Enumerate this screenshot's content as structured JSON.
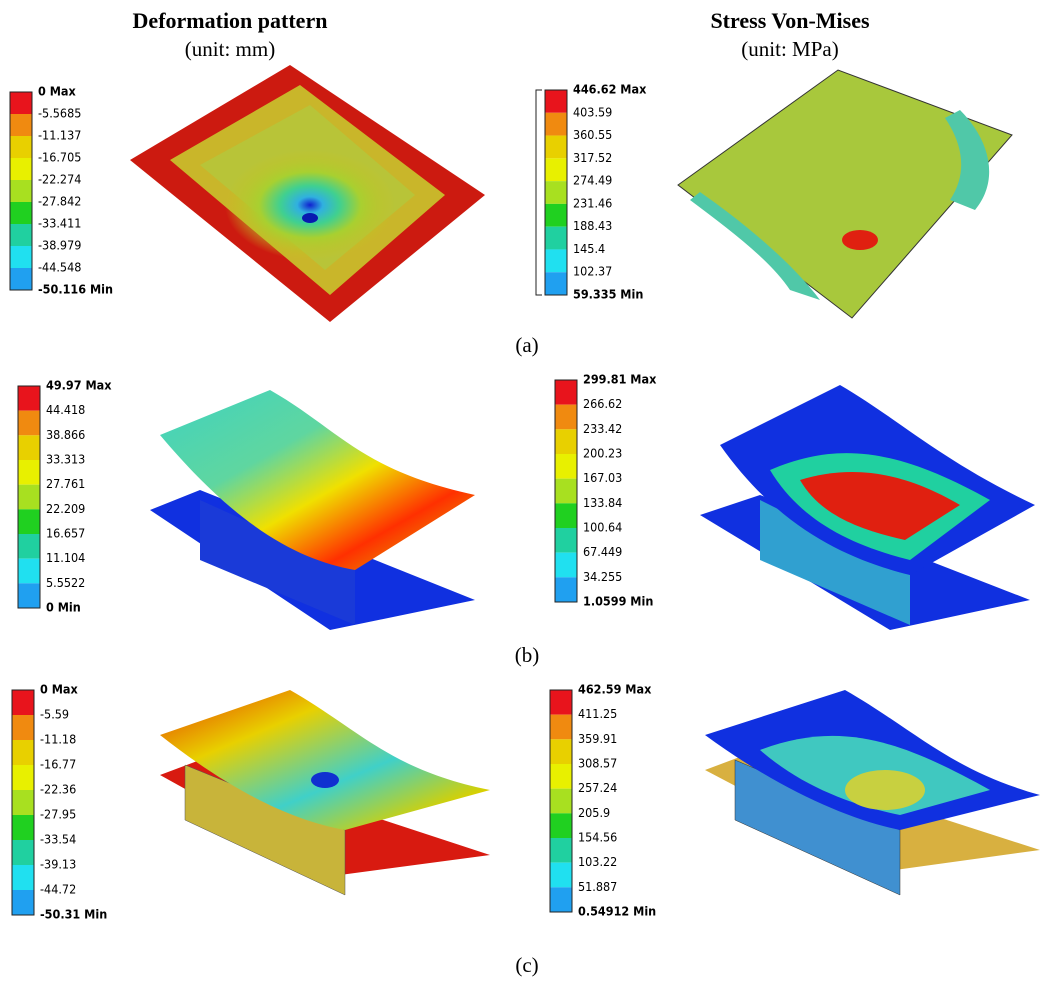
{
  "columns": [
    {
      "title": "Deformation pattern",
      "unit": "(unit: mm)"
    },
    {
      "title": "Stress Von-Mises",
      "unit": "(unit: MPa)"
    }
  ],
  "rows": [
    {
      "label": "(a)",
      "legends": [
        [
          "0 Max",
          "-5.5685",
          "-11.137",
          "-16.705",
          "-22.274",
          "-27.842",
          "-33.411",
          "-38.979",
          "-44.548",
          "-50.116 Min"
        ],
        [
          "446.62 Max",
          "403.59",
          "360.55",
          "317.52",
          "274.49",
          "231.46",
          "188.43",
          "145.4",
          "102.37",
          "59.335 Min"
        ]
      ]
    },
    {
      "label": "(b)",
      "legends": [
        [
          "49.97 Max",
          "44.418",
          "38.866",
          "33.313",
          "27.761",
          "22.209",
          "16.657",
          "11.104",
          "5.5522",
          "0 Min"
        ],
        [
          "299.81 Max",
          "266.62",
          "233.42",
          "200.23",
          "167.03",
          "133.84",
          "100.64",
          "67.449",
          "34.255",
          "1.0599 Min"
        ]
      ]
    },
    {
      "label": "(c)",
      "legends": [
        [
          "0 Max",
          "-5.59",
          "-11.18",
          "-16.77",
          "-22.36",
          "-27.95",
          "-33.54",
          "-39.13",
          "-44.72",
          "-50.31 Min"
        ],
        [
          "462.59 Max",
          "411.25",
          "359.91",
          "308.57",
          "257.24",
          "205.9",
          "154.56",
          "103.22",
          "51.887",
          "0.54912 Min"
        ]
      ]
    }
  ]
}
